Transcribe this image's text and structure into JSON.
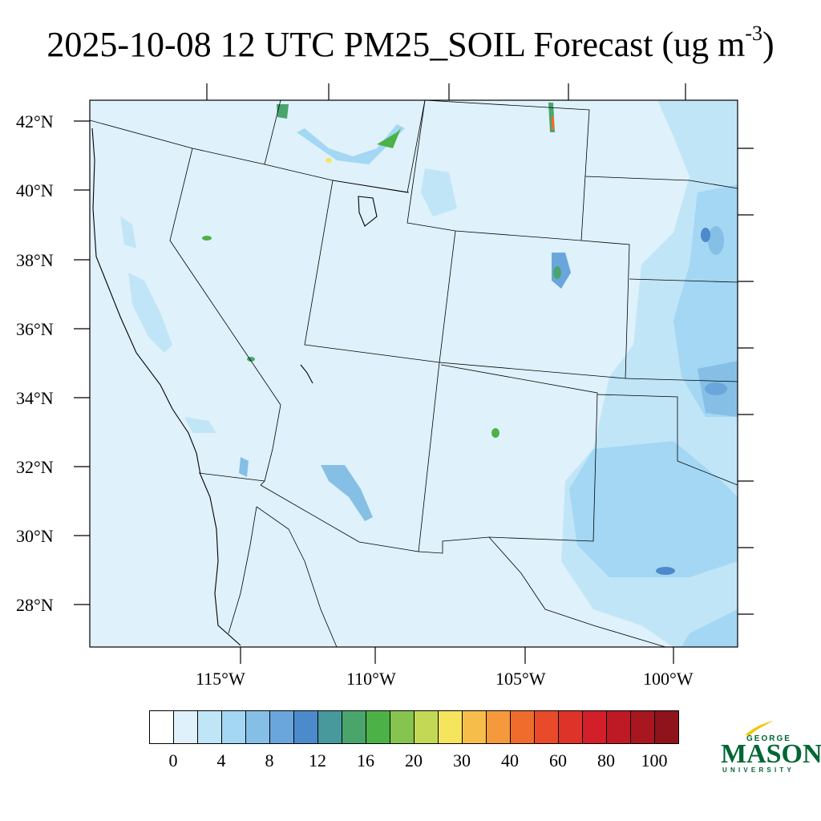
{
  "title": {
    "main": "2025-10-08 12 UTC PM25_SOIL Forecast (ug m",
    "exponent": "-3",
    "close": ")"
  },
  "map": {
    "latitude_labels": [
      "42°N",
      "40°N",
      "38°N",
      "36°N",
      "34°N",
      "32°N",
      "30°N",
      "28°N"
    ],
    "longitude_labels": [
      "115°W",
      "110°W",
      "105°W",
      "100°W"
    ],
    "background_color": "#dff1fb",
    "boundary_color": "#000000"
  },
  "colorbar": {
    "colors": [
      "#ffffff",
      "#dff1fb",
      "#c0e5f7",
      "#a3d7f3",
      "#86bfe5",
      "#6aa6dc",
      "#4d8acb",
      "#48999b",
      "#4aa56c",
      "#4cb248",
      "#86c450",
      "#c3d955",
      "#f5e55c",
      "#f6bd4a",
      "#f49a3c",
      "#f06c2c",
      "#e84a2a",
      "#de3329",
      "#d31f2a",
      "#bd1a26",
      "#a81620",
      "#8f131b"
    ],
    "tick_labels": [
      "0",
      "4",
      "8",
      "12",
      "16",
      "20",
      "30",
      "40",
      "60",
      "80",
      "100"
    ]
  },
  "logo": {
    "top": "GEORGE",
    "middle": "MASON",
    "bottom": "UNIVERSITY",
    "color": "#006633",
    "accent": "#f5c400"
  }
}
